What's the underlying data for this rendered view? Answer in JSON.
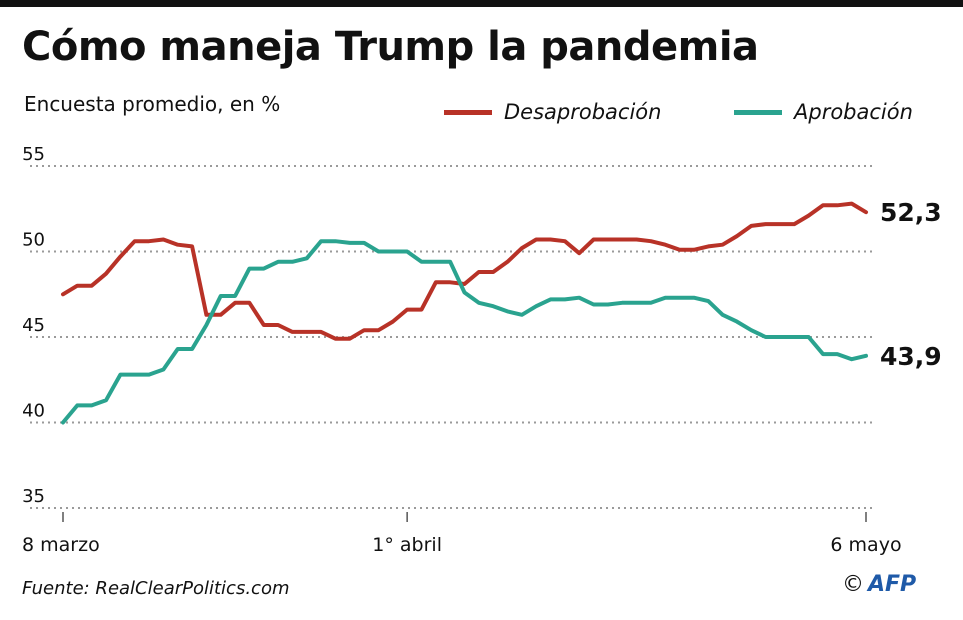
{
  "chart_data": {
    "type": "line",
    "title": "Cómo maneja Trump la pandemia",
    "subtitle": "Encuesta promedio, en %",
    "ylim": [
      35,
      55
    ],
    "yticks": [
      35,
      40,
      45,
      50,
      55
    ],
    "ytick_labels": [
      "35",
      "40",
      "45",
      "50",
      "55"
    ],
    "grid": true,
    "legend_placement": "top-right",
    "x_ticks": [
      {
        "index": 0,
        "label": "8 marzo"
      },
      {
        "index": 24,
        "label": "1° abril"
      },
      {
        "index": 56,
        "label": "6 mayo"
      }
    ],
    "series": [
      {
        "name": "Desaprobación",
        "color": "#b83227",
        "end_label": "52,3",
        "values": [
          47.5,
          48.0,
          48.0,
          48.7,
          49.7,
          50.6,
          50.6,
          50.7,
          50.4,
          50.3,
          46.3,
          46.3,
          47.0,
          47.0,
          45.7,
          45.7,
          45.3,
          45.3,
          45.3,
          44.9,
          44.9,
          45.4,
          45.4,
          45.9,
          46.6,
          46.6,
          48.2,
          48.2,
          48.1,
          48.8,
          48.8,
          49.4,
          50.2,
          50.7,
          50.7,
          50.6,
          49.9,
          50.7,
          50.7,
          50.7,
          50.7,
          50.6,
          50.4,
          50.1,
          50.1,
          50.3,
          50.4,
          50.9,
          51.5,
          51.6,
          51.6,
          51.6,
          52.1,
          52.7,
          52.7,
          52.8,
          52.3
        ]
      },
      {
        "name": "Aprobación",
        "color": "#2aa38f",
        "end_label": "43,9",
        "values": [
          40.0,
          41.0,
          41.0,
          41.3,
          42.8,
          42.8,
          42.8,
          43.1,
          44.3,
          44.3,
          45.7,
          47.4,
          47.4,
          49.0,
          49.0,
          49.4,
          49.4,
          49.6,
          50.6,
          50.6,
          50.5,
          50.5,
          50.0,
          50.0,
          50.0,
          49.4,
          49.4,
          49.4,
          47.6,
          47.0,
          46.8,
          46.5,
          46.3,
          46.8,
          47.2,
          47.2,
          47.3,
          46.9,
          46.9,
          47.0,
          47.0,
          47.0,
          47.3,
          47.3,
          47.3,
          47.1,
          46.3,
          45.9,
          45.4,
          45.0,
          45.0,
          45.0,
          45.0,
          44.0,
          44.0,
          43.7,
          43.9
        ]
      }
    ]
  },
  "footer": {
    "source": "Fuente: RealClearPolitics.com",
    "copyright": "©",
    "logo_text": "AFP"
  }
}
